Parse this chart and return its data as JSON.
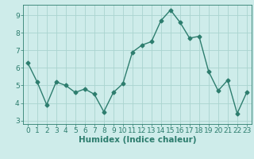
{
  "x": [
    0,
    1,
    2,
    3,
    4,
    5,
    6,
    7,
    8,
    9,
    10,
    11,
    12,
    13,
    14,
    15,
    16,
    17,
    18,
    19,
    20,
    21,
    22,
    23
  ],
  "y": [
    6.3,
    5.2,
    3.9,
    5.2,
    5.0,
    4.6,
    4.8,
    4.5,
    3.5,
    4.6,
    5.1,
    6.9,
    7.3,
    7.5,
    8.7,
    9.3,
    8.6,
    7.7,
    7.8,
    5.8,
    4.7,
    5.3,
    3.4,
    4.6
  ],
  "line_color": "#2d7d6e",
  "marker": "D",
  "marker_size": 2.5,
  "bg_color": "#ceecea",
  "grid_color": "#aad4cf",
  "xlabel": "Humidex (Indice chaleur)",
  "ylim": [
    2.8,
    9.6
  ],
  "xlim": [
    -0.5,
    23.5
  ],
  "yticks": [
    3,
    4,
    5,
    6,
    7,
    8,
    9
  ],
  "xticks": [
    0,
    1,
    2,
    3,
    4,
    5,
    6,
    7,
    8,
    9,
    10,
    11,
    12,
    13,
    14,
    15,
    16,
    17,
    18,
    19,
    20,
    21,
    22,
    23
  ],
  "tick_labelsize": 6.5,
  "xlabel_fontsize": 7.5,
  "linewidth": 1.0,
  "axis_color": "#2d7d6e",
  "spine_color": "#2d7d6e"
}
